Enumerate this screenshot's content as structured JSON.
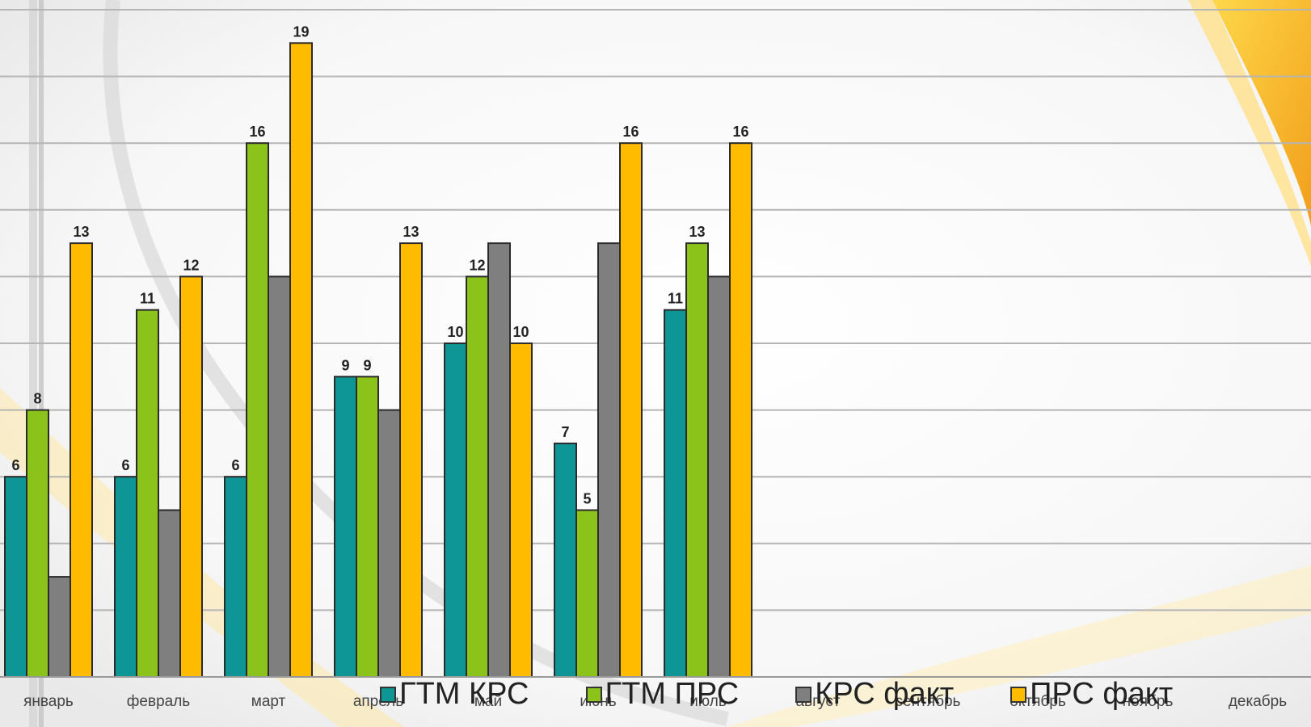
{
  "chart_data": {
    "type": "bar",
    "title": "",
    "xlabel": "",
    "ylabel": "",
    "ylim": [
      0,
      20
    ],
    "grid": true,
    "legend_position": "bottom",
    "categories": [
      "январь",
      "февраль",
      "март",
      "апрель",
      "май",
      "июнь",
      "июль",
      "август",
      "сентябрь",
      "октябрь",
      "ноябрь",
      "декабрь"
    ],
    "series": [
      {
        "name": "ГТМ КРС",
        "color": "#0e9595",
        "values": [
          6,
          6,
          6,
          9,
          10,
          7,
          11,
          null,
          null,
          null,
          null,
          null
        ],
        "labeled": [
          true,
          true,
          true,
          true,
          true,
          true,
          true,
          false,
          false,
          false,
          false,
          false
        ]
      },
      {
        "name": "ГТМ ПРС",
        "color": "#8cc31a",
        "values": [
          8,
          11,
          16,
          9,
          12,
          5,
          13,
          null,
          null,
          null,
          null,
          null
        ],
        "labeled": [
          true,
          true,
          true,
          true,
          true,
          true,
          true,
          false,
          false,
          false,
          false,
          false
        ]
      },
      {
        "name": "КРС факт",
        "color": "#7f7f7f",
        "values": [
          3,
          5,
          12,
          8,
          13,
          13,
          12,
          null,
          null,
          null,
          null,
          null
        ],
        "labeled": [
          false,
          false,
          false,
          false,
          false,
          false,
          false,
          false,
          false,
          false,
          false,
          false
        ]
      },
      {
        "name": "ПРС факт",
        "color": "#ffbb00",
        "values": [
          13,
          12,
          19,
          13,
          10,
          16,
          16,
          null,
          null,
          null,
          null,
          null
        ],
        "labeled": [
          true,
          true,
          true,
          true,
          true,
          true,
          true,
          false,
          false,
          false,
          false,
          false
        ]
      }
    ]
  }
}
